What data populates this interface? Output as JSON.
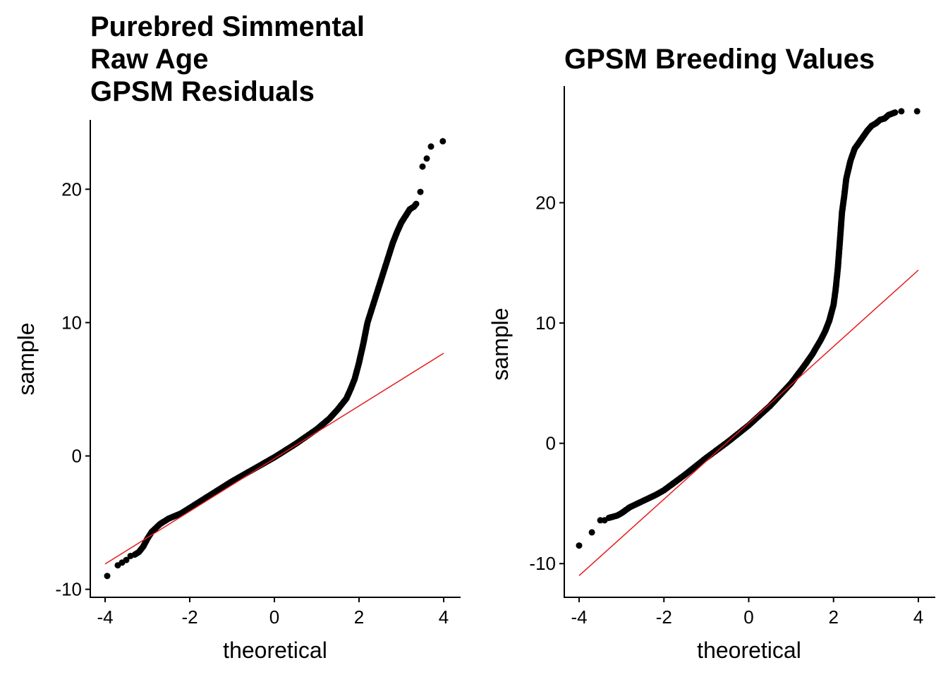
{
  "chart_data": [
    {
      "type": "scatter",
      "subtype": "qq-plot",
      "title": "Purebred Simmental\nRaw Age\nGPSM Residuals",
      "title_lines": [
        "Purebred Simmental",
        "Raw Age",
        "GPSM Residuals"
      ],
      "xlabel": "theoretical",
      "ylabel": "sample",
      "xlim": [
        -4.35,
        4.4
      ],
      "ylim": [
        -10.6,
        25.2
      ],
      "xticks": [
        -4,
        -2,
        0,
        2,
        4
      ],
      "xtick_labels": [
        "-4",
        "-2",
        "0",
        "2",
        "4"
      ],
      "yticks": [
        -10,
        0,
        10,
        20
      ],
      "ytick_labels": [
        "-10",
        "0",
        "10",
        "20"
      ],
      "grid": false,
      "point_color": "#000000",
      "line_color": "#e41a1c",
      "reference_line": {
        "x": [
          -4,
          4
        ],
        "y": [
          -8.1,
          7.7
        ]
      },
      "points": {
        "x": [
          -3.95,
          -3.7,
          -3.6,
          -3.5,
          -3.4,
          -3.3,
          -3.2,
          -3.1,
          -3.0,
          -2.9,
          -2.8,
          -2.7,
          -2.5,
          -2.2,
          -2.0,
          -1.5,
          -1.0,
          -0.5,
          0.0,
          0.5,
          1.0,
          1.3,
          1.5,
          1.7,
          1.8,
          1.9,
          2.0,
          2.1,
          2.2,
          2.3,
          2.4,
          2.5,
          2.6,
          2.7,
          2.8,
          2.9,
          3.0,
          3.1,
          3.2,
          3.3,
          3.35,
          3.45,
          3.5,
          3.6,
          3.7,
          3.98
        ],
        "y": [
          -9.0,
          -8.2,
          -8.0,
          -7.8,
          -7.5,
          -7.4,
          -7.2,
          -6.8,
          -6.2,
          -5.7,
          -5.4,
          -5.1,
          -4.7,
          -4.3,
          -3.9,
          -2.9,
          -1.9,
          -1.0,
          -0.1,
          0.9,
          2.0,
          2.8,
          3.5,
          4.3,
          5.0,
          5.8,
          7.0,
          8.4,
          10.0,
          11.0,
          12.0,
          13.0,
          14.0,
          15.0,
          16.0,
          16.8,
          17.5,
          18.0,
          18.5,
          18.7,
          18.9,
          19.8,
          21.7,
          22.3,
          23.2,
          23.6
        ]
      }
    },
    {
      "type": "scatter",
      "subtype": "qq-plot",
      "title": "GPSM Breeding Values",
      "title_lines": [
        "GPSM Breeding Values"
      ],
      "xlabel": "theoretical",
      "ylabel": "sample",
      "xlim": [
        -4.35,
        4.4
      ],
      "ylim": [
        -12.8,
        29.7
      ],
      "xticks": [
        -4,
        -2,
        0,
        2,
        4
      ],
      "xtick_labels": [
        "-4",
        "-2",
        "0",
        "2",
        "4"
      ],
      "yticks": [
        -10,
        0,
        10,
        20
      ],
      "ytick_labels": [
        "-10",
        "0",
        "10",
        "20"
      ],
      "grid": false,
      "point_color": "#000000",
      "line_color": "#e41a1c",
      "reference_line": {
        "x": [
          -4,
          4
        ],
        "y": [
          -11.0,
          14.4
        ]
      },
      "points": {
        "x": [
          -4.0,
          -3.7,
          -3.5,
          -3.4,
          -3.3,
          -3.1,
          -3.0,
          -2.8,
          -2.5,
          -2.2,
          -2.0,
          -1.5,
          -1.0,
          -0.5,
          0.0,
          0.5,
          1.0,
          1.3,
          1.5,
          1.7,
          1.8,
          1.9,
          2.0,
          2.05,
          2.1,
          2.15,
          2.2,
          2.25,
          2.3,
          2.4,
          2.5,
          2.6,
          2.7,
          2.8,
          2.9,
          3.0,
          3.1,
          3.2,
          3.3,
          3.45,
          3.6,
          3.97
        ],
        "y": [
          -8.5,
          -7.4,
          -6.4,
          -6.4,
          -6.2,
          -6.0,
          -5.8,
          -5.3,
          -4.8,
          -4.3,
          -3.9,
          -2.6,
          -1.2,
          0.1,
          1.5,
          3.1,
          5.0,
          6.4,
          7.4,
          8.6,
          9.3,
          10.2,
          11.5,
          12.8,
          14.5,
          16.8,
          19.2,
          20.5,
          22.0,
          23.5,
          24.5,
          25.0,
          25.5,
          26.0,
          26.4,
          26.6,
          26.9,
          27.0,
          27.3,
          27.5,
          27.6,
          27.6
        ]
      }
    }
  ]
}
